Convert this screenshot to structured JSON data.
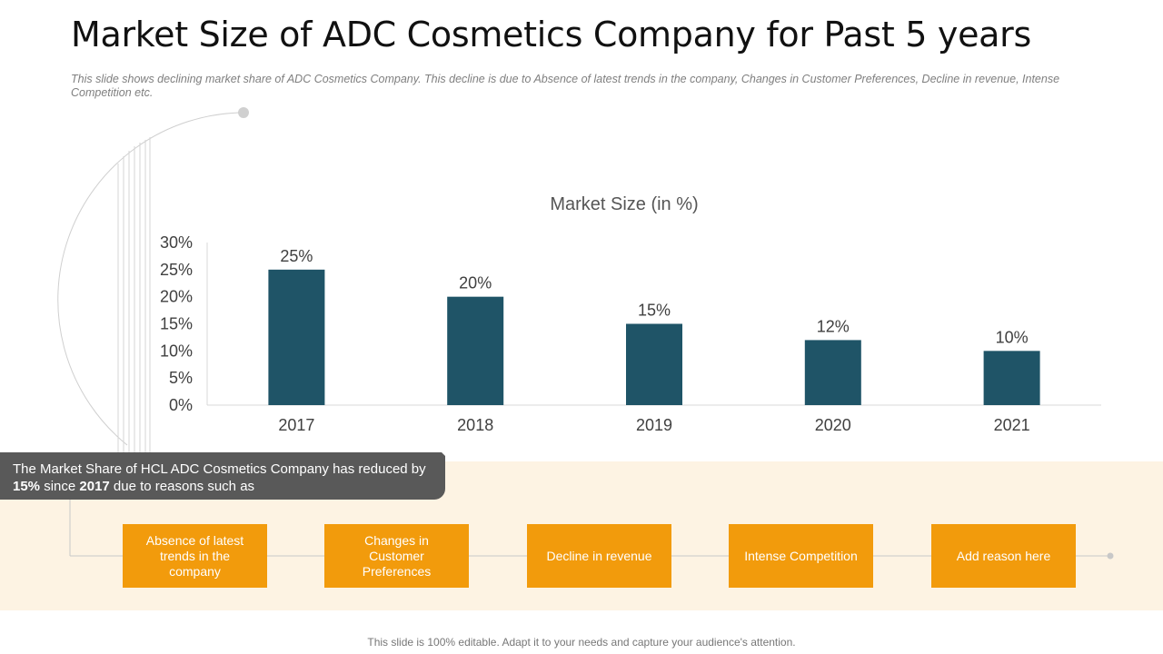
{
  "slide": {
    "title": "Market Size of ADC Cosmetics Company for Past 5 years",
    "subtitle": "This slide shows declining market share of ADC Cosmetics Company. This decline is due to Absence of latest trends in the company, Changes in Customer Preferences, Decline in revenue, Intense Competition etc."
  },
  "chart_data": {
    "type": "bar",
    "title": "Market Size (in %)",
    "categories": [
      "2017",
      "2018",
      "2019",
      "2020",
      "2021"
    ],
    "values": [
      25,
      20,
      15,
      12,
      10
    ],
    "data_labels": [
      "25%",
      "20%",
      "15%",
      "12%",
      "10%"
    ],
    "y_ticks": [
      "0%",
      "5%",
      "10%",
      "15%",
      "20%",
      "25%",
      "30%"
    ],
    "ylim": [
      0,
      30
    ],
    "xlabel": "",
    "ylabel": "",
    "bar_color": "#1f5467"
  },
  "callout": {
    "part1": "The Market Share of HCL ADC Cosmetics Company has reduced by ",
    "bold1": "15%",
    "part2": " since ",
    "bold2": "2017",
    "part3": " due to reasons such as"
  },
  "reasons": [
    "Absence of latest trends in the company",
    "Changes in Customer Preferences",
    "Decline in revenue",
    "Intense Competition",
    "Add reason here"
  ],
  "footer": "This slide is 100% editable. Adapt it to your needs and capture your audience's attention.",
  "colors": {
    "accent": "#f29b0c",
    "band": "#fdf3e3",
    "callout": "#595959"
  }
}
